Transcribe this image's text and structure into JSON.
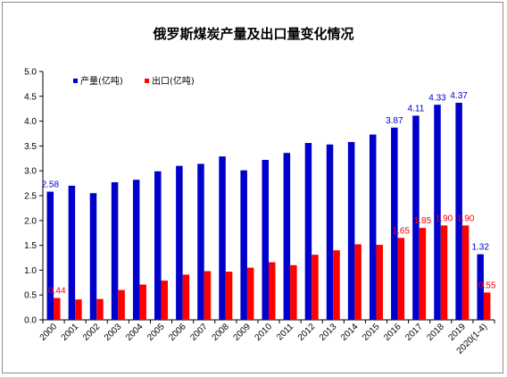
{
  "chart_data": {
    "type": "bar",
    "title": "俄罗斯煤炭产量及出口量变化情况",
    "categories": [
      "2000",
      "2001",
      "2002",
      "2003",
      "2004",
      "2005",
      "2006",
      "2007",
      "2008",
      "2009",
      "2010",
      "2011",
      "2012",
      "2013",
      "2014",
      "2015",
      "2016",
      "2017",
      "2018",
      "2019",
      "2020(1-4)"
    ],
    "series": [
      {
        "name": "产量(亿吨)",
        "color": "#0000cc",
        "values": [
          2.58,
          2.7,
          2.55,
          2.77,
          2.82,
          2.99,
          3.1,
          3.14,
          3.29,
          3.01,
          3.22,
          3.36,
          3.56,
          3.53,
          3.58,
          3.73,
          3.87,
          4.11,
          4.33,
          4.37,
          1.32
        ],
        "labels": [
          "2.58",
          "",
          "",
          "",
          "",
          "",
          "",
          "",
          "",
          "",
          "",
          "",
          "",
          "",
          "",
          "",
          "3.87",
          "4.11",
          "4.33",
          "4.37",
          "1.32"
        ]
      },
      {
        "name": "出口(亿吨)",
        "color": "#ff0000",
        "values": [
          0.44,
          0.41,
          0.42,
          0.6,
          0.71,
          0.79,
          0.91,
          0.98,
          0.97,
          1.05,
          1.16,
          1.1,
          1.31,
          1.4,
          1.52,
          1.51,
          1.65,
          1.85,
          1.9,
          1.9,
          0.55
        ],
        "labels": [
          "0.44",
          "",
          "",
          "",
          "",
          "",
          "",
          "",
          "",
          "",
          "",
          "",
          "",
          "",
          "",
          "",
          "1.65",
          "1.85",
          "1.90",
          "1.90",
          "0.55"
        ]
      }
    ],
    "ylim": [
      0,
      5.0
    ],
    "yticks": [
      "0.0",
      "0.5",
      "1.0",
      "1.5",
      "2.0",
      "2.5",
      "3.0",
      "3.5",
      "4.0",
      "4.5",
      "5.0"
    ],
    "legend_position": "top-left",
    "grid": false
  }
}
